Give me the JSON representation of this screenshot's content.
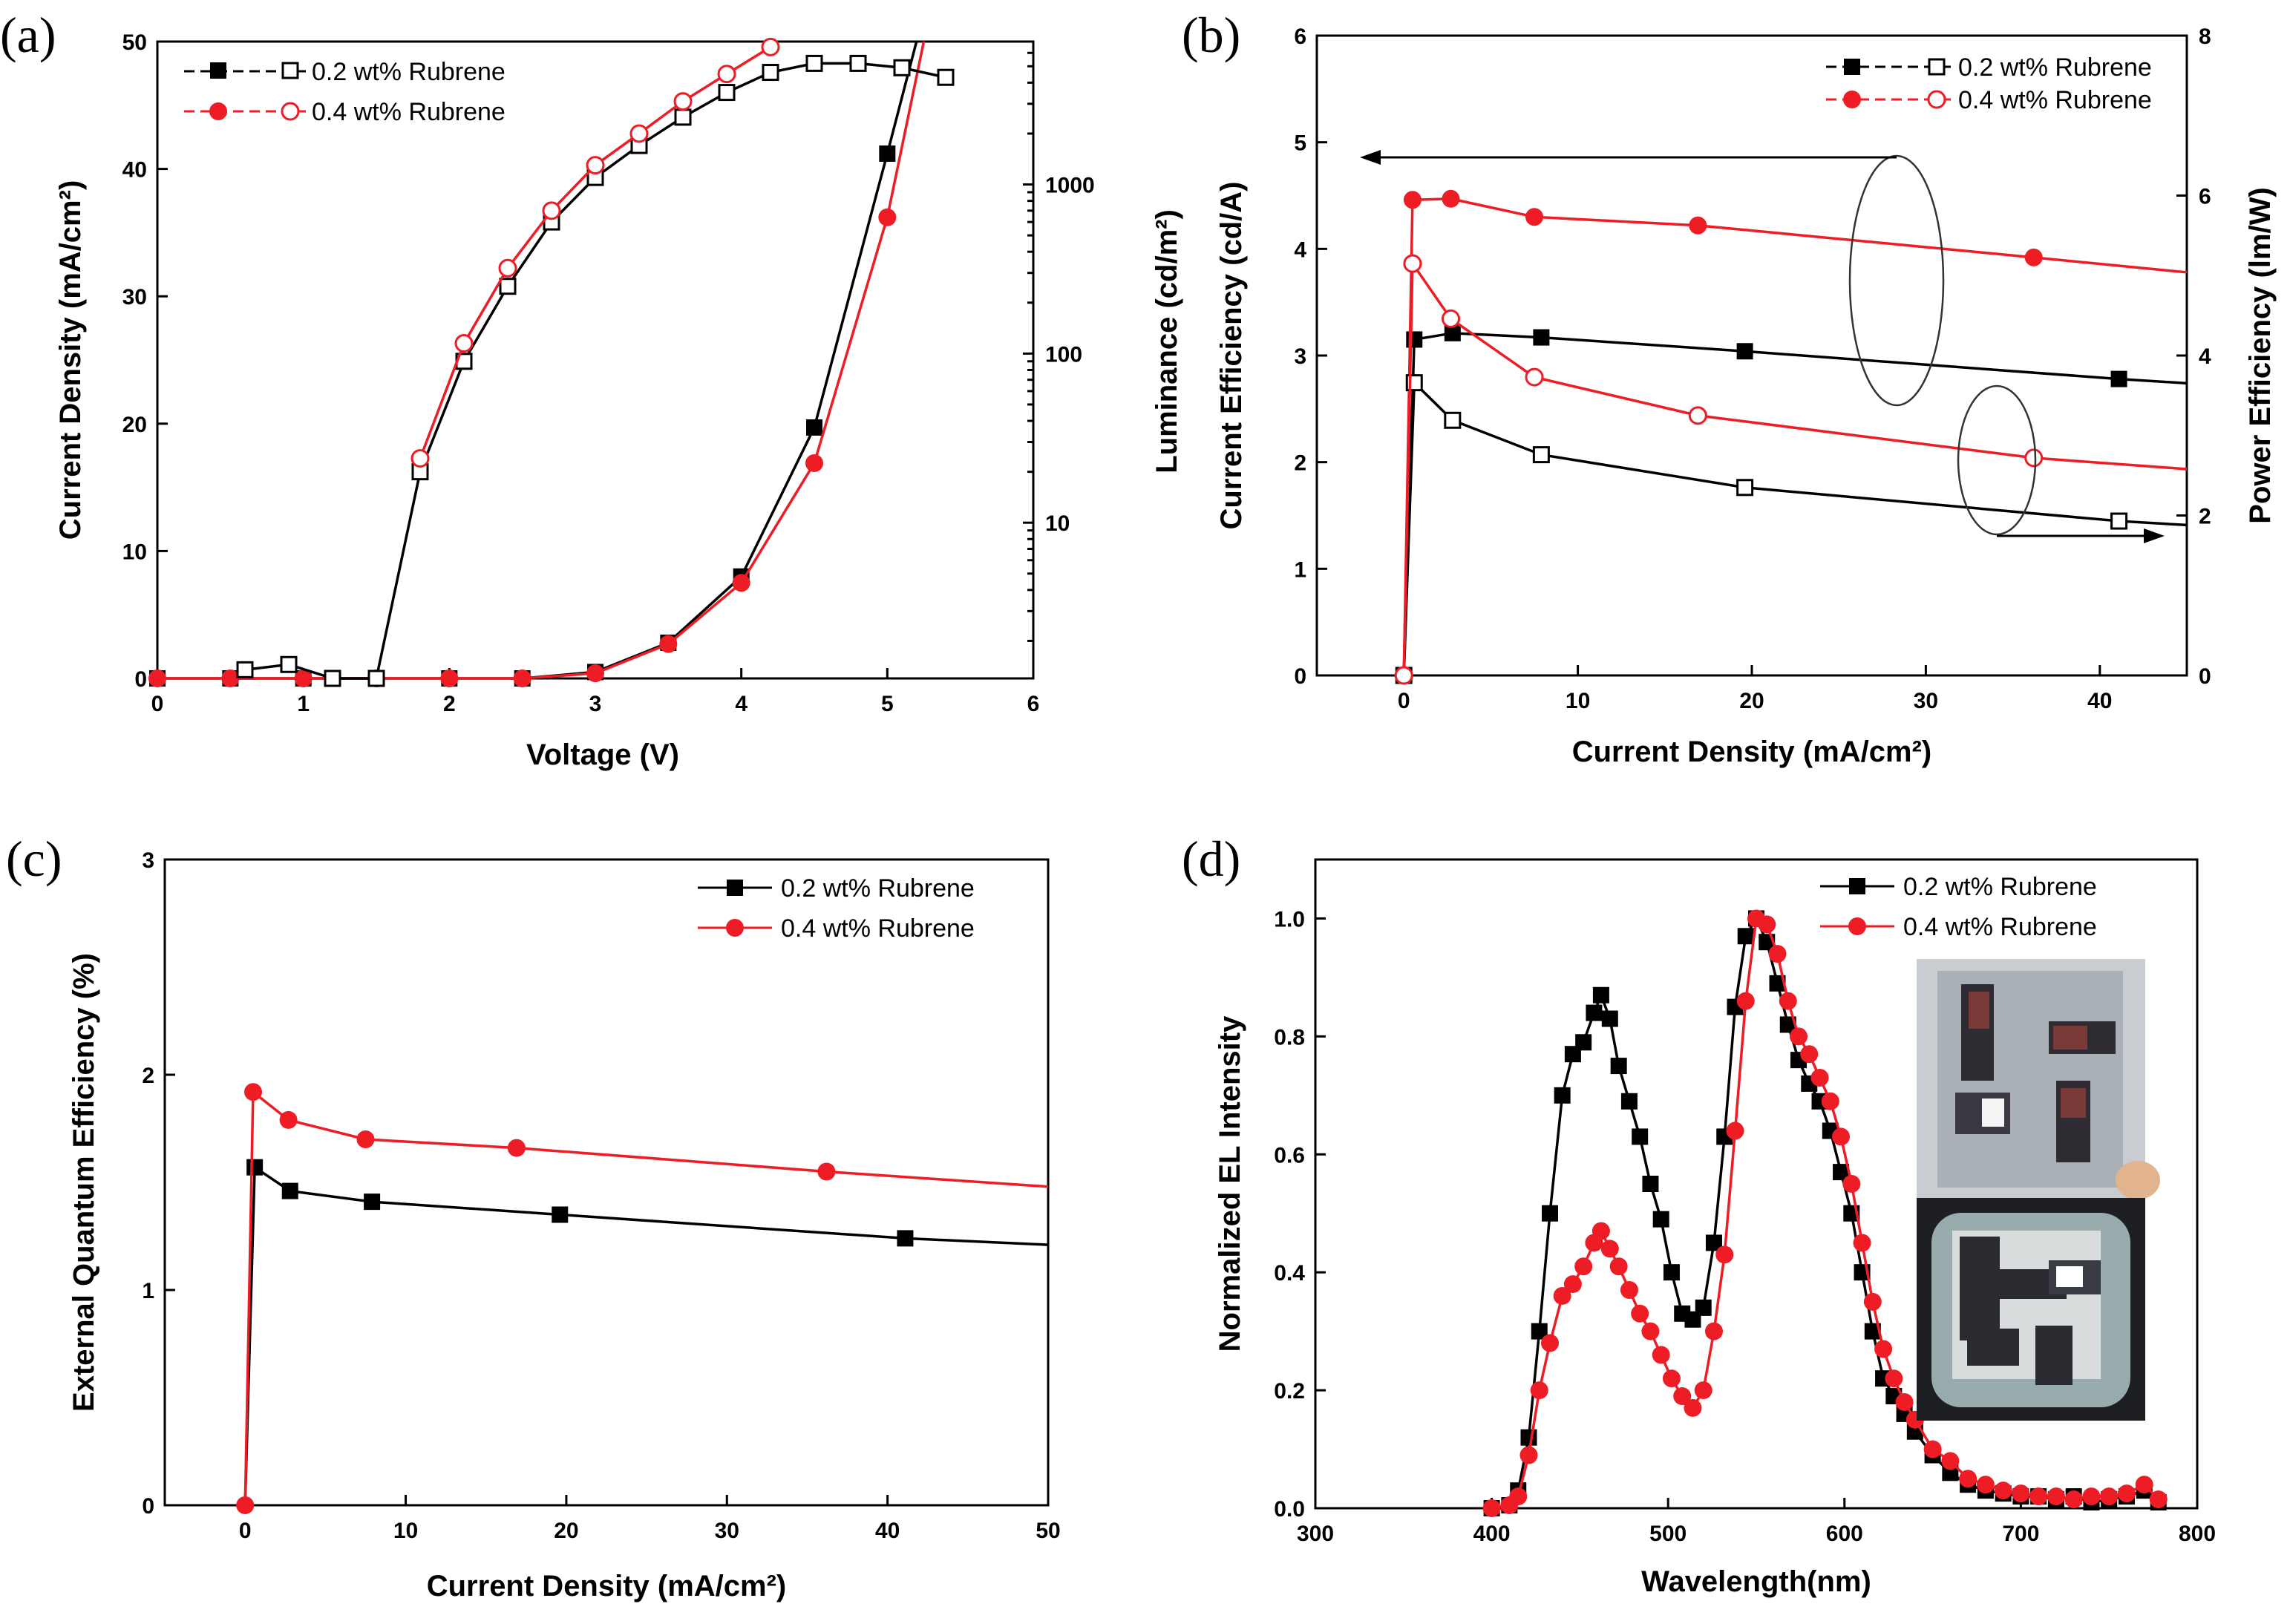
{
  "colors": {
    "black": "#000000",
    "red": "#ee1c24"
  },
  "chart_data": [
    {
      "id": "a",
      "panel_label": "(a)",
      "type": "line",
      "xlabel": "Voltage (V)",
      "ylabel": "Current Density (mA/cm²)",
      "y2label": "Luminance (cd/m²)",
      "xlim": [
        0,
        6
      ],
      "ylim": [
        0,
        50
      ],
      "y2lim": [
        1.2,
        7000
      ],
      "y2scale": "log",
      "xticks": [
        "0",
        "1",
        "2",
        "3",
        "4",
        "5",
        "6"
      ],
      "yticks": [
        "0",
        "10",
        "20",
        "30",
        "40",
        "50"
      ],
      "y2ticks": [
        "10",
        "100",
        "1000"
      ],
      "legend": [
        "0.2 wt% Rubrene",
        "0.4 wt% Rubrene"
      ],
      "legend_position": "top-left",
      "series": [
        {
          "name": "0.2 wt% Rubrene",
          "axis": "left",
          "color": "black",
          "marker": "filled-square",
          "x": [
            0,
            0.5,
            1,
            1.5,
            2,
            2.5,
            3,
            3.5,
            4,
            4.5,
            5,
            5.2
          ],
          "y": [
            0,
            0,
            0,
            0,
            0,
            0,
            0.5,
            2.8,
            8,
            19.7,
            41.2,
            52
          ]
        },
        {
          "name": "0.4 wt% Rubrene",
          "axis": "left",
          "color": "red",
          "marker": "filled-circle",
          "x": [
            0,
            0.5,
            1,
            1.5,
            2,
            2.5,
            3,
            3.5,
            4,
            4.5,
            5,
            5.25
          ],
          "y": [
            0,
            0,
            0,
            0,
            0,
            0,
            0.4,
            2.7,
            7.5,
            16.9,
            36.2,
            52
          ]
        },
        {
          "name": "0.2 wt% Rubrene",
          "axis": "right",
          "color": "black",
          "marker": "open-square",
          "x": [
            0.6,
            0.9,
            1.2,
            1.5,
            1.8,
            2.1,
            2.4,
            2.7,
            3.0,
            3.3,
            3.6,
            3.9,
            4.2,
            4.5,
            4.8,
            5.1,
            5.4
          ],
          "y": [
            1.35,
            1.45,
            1.2,
            1.2,
            20,
            90,
            250,
            600,
            1100,
            1700,
            2500,
            3500,
            4600,
            5200,
            5200,
            4900,
            4300
          ]
        },
        {
          "name": "0.4 wt% Rubrene",
          "axis": "right",
          "color": "red",
          "marker": "open-circle",
          "x": [
            1.8,
            2.1,
            2.4,
            2.7,
            3.0,
            3.3,
            3.6,
            3.9,
            4.2
          ],
          "y": [
            24,
            115,
            320,
            700,
            1300,
            2000,
            3100,
            4500,
            6500
          ]
        }
      ]
    },
    {
      "id": "b",
      "panel_label": "(b)",
      "type": "line",
      "xlabel": "Current Density (mA/cm²)",
      "ylabel": "Current Efficiency (cd/A)",
      "y2label": "Power Efficiency (lm/W)",
      "xlim": [
        -5,
        45
      ],
      "ylim": [
        0,
        6
      ],
      "y2lim": [
        0,
        8
      ],
      "xticks": [
        "0",
        "10",
        "20",
        "30",
        "40"
      ],
      "yticks": [
        "0",
        "1",
        "2",
        "3",
        "4",
        "5",
        "6"
      ],
      "y2ticks": [
        "0",
        "2",
        "4",
        "6",
        "8"
      ],
      "legend": [
        "0.2 wt% Rubrene",
        "0.4 wt% Rubrene"
      ],
      "legend_position": "top-right",
      "series": [
        {
          "name": "0.2 wt% Rubrene",
          "axis": "left",
          "color": "black",
          "marker": "filled-square",
          "x": [
            0,
            0.6,
            2.8,
            7.9,
            19.6,
            41.1,
            45
          ],
          "y": [
            0,
            3.15,
            3.21,
            3.17,
            3.04,
            2.78,
            2.74
          ],
          "marker_idx": [
            1,
            2,
            3,
            4,
            5
          ]
        },
        {
          "name": "0.4 wt% Rubrene",
          "axis": "left",
          "color": "red",
          "marker": "filled-circle",
          "x": [
            0,
            0.5,
            2.7,
            7.5,
            16.9,
            36.2,
            45
          ],
          "y": [
            0,
            4.46,
            4.47,
            4.3,
            4.22,
            3.92,
            3.78
          ],
          "marker_idx": [
            1,
            2,
            3,
            4,
            5
          ]
        },
        {
          "name": "0.2 wt% Rubrene",
          "axis": "right",
          "color": "black",
          "marker": "open-square",
          "x": [
            0,
            0.6,
            2.8,
            7.9,
            19.6,
            41.1,
            45
          ],
          "y": [
            0,
            3.66,
            3.19,
            2.76,
            2.35,
            1.93,
            1.88
          ],
          "marker_idx": [
            0,
            1,
            2,
            3,
            4,
            5
          ]
        },
        {
          "name": "0.4 wt% Rubrene",
          "axis": "right",
          "color": "red",
          "marker": "open-circle",
          "x": [
            0,
            0.5,
            2.7,
            7.5,
            16.9,
            36.2,
            45
          ],
          "y": [
            0,
            5.15,
            4.46,
            3.73,
            3.25,
            2.72,
            2.58
          ],
          "marker_idx": [
            0,
            1,
            2,
            3,
            4,
            5
          ]
        }
      ]
    },
    {
      "id": "c",
      "panel_label": "(c)",
      "type": "line",
      "xlabel": "Current Density (mA/cm²)",
      "ylabel": "External Quantum Efficiency (%)",
      "xlim": [
        -5,
        50
      ],
      "ylim": [
        0,
        3
      ],
      "xticks": [
        "0",
        "10",
        "20",
        "30",
        "40",
        "50"
      ],
      "yticks": [
        "0",
        "1",
        "2",
        "3"
      ],
      "legend": [
        "0.2 wt% Rubrene",
        "0.4 wt% Rubrene"
      ],
      "legend_position": "top-right",
      "series": [
        {
          "name": "0.2 wt% Rubrene",
          "color": "black",
          "marker": "filled-square",
          "x": [
            0,
            0.6,
            2.8,
            7.9,
            19.6,
            41.1,
            50
          ],
          "y": [
            0,
            1.57,
            1.46,
            1.41,
            1.35,
            1.24,
            1.21
          ],
          "marker_idx": [
            1,
            2,
            3,
            4,
            5
          ]
        },
        {
          "name": "0.4 wt% Rubrene",
          "color": "red",
          "marker": "filled-circle",
          "x": [
            0,
            0.5,
            2.7,
            7.5,
            16.9,
            36.2,
            50
          ],
          "y": [
            0,
            1.92,
            1.79,
            1.7,
            1.66,
            1.55,
            1.48
          ],
          "marker_idx": [
            0,
            1,
            2,
            3,
            4,
            5
          ]
        }
      ]
    },
    {
      "id": "d",
      "panel_label": "(d)",
      "type": "line",
      "xlabel": "Wavelength(nm)",
      "ylabel": "Normalized EL Intensity",
      "xlim": [
        300,
        800
      ],
      "ylim": [
        0,
        1.1
      ],
      "xticks": [
        "300",
        "400",
        "500",
        "600",
        "700",
        "800"
      ],
      "yticks": [
        "0.0",
        "0.2",
        "0.4",
        "0.6",
        "0.8",
        "1.0"
      ],
      "legend": [
        "0.2 wt% Rubrene",
        "0.4 wt% Rubrene"
      ],
      "legend_position": "top-right",
      "inset": "device photographs (unlit and emitting)",
      "series": [
        {
          "name": "0.2 wt% Rubrene",
          "color": "black",
          "marker": "filled-square",
          "x": [
            400,
            410,
            415,
            421,
            427,
            433,
            440,
            446,
            452,
            458,
            462,
            467,
            472,
            478,
            484,
            490,
            496,
            502,
            508,
            514,
            520,
            526,
            532,
            538,
            544,
            550,
            556,
            562,
            568,
            574,
            580,
            586,
            592,
            598,
            604,
            610,
            616,
            622,
            628,
            634,
            640,
            650,
            660,
            670,
            680,
            690,
            700,
            710,
            720,
            730,
            740,
            750,
            760,
            770,
            778
          ],
          "y": [
            0.0,
            0.005,
            0.03,
            0.12,
            0.3,
            0.5,
            0.7,
            0.77,
            0.79,
            0.84,
            0.87,
            0.83,
            0.75,
            0.69,
            0.63,
            0.55,
            0.49,
            0.4,
            0.33,
            0.32,
            0.34,
            0.45,
            0.63,
            0.85,
            0.97,
            1.0,
            0.96,
            0.89,
            0.82,
            0.76,
            0.72,
            0.69,
            0.64,
            0.57,
            0.5,
            0.4,
            0.3,
            0.22,
            0.19,
            0.16,
            0.13,
            0.09,
            0.06,
            0.04,
            0.03,
            0.025,
            0.02,
            0.02,
            0.015,
            0.02,
            0.01,
            0.015,
            0.02,
            0.03,
            0.01
          ]
        },
        {
          "name": "0.4 wt% Rubrene",
          "color": "red",
          "marker": "filled-circle",
          "x": [
            400,
            410,
            415,
            421,
            427,
            433,
            440,
            446,
            452,
            458,
            462,
            467,
            472,
            478,
            484,
            490,
            496,
            502,
            508,
            514,
            520,
            526,
            532,
            538,
            544,
            550,
            556,
            562,
            568,
            574,
            580,
            586,
            592,
            598,
            604,
            610,
            616,
            622,
            628,
            634,
            640,
            650,
            660,
            670,
            680,
            690,
            700,
            710,
            720,
            730,
            740,
            750,
            760,
            770,
            778
          ],
          "y": [
            0.0,
            0.005,
            0.02,
            0.09,
            0.2,
            0.28,
            0.36,
            0.38,
            0.41,
            0.45,
            0.47,
            0.44,
            0.41,
            0.37,
            0.33,
            0.3,
            0.26,
            0.22,
            0.19,
            0.17,
            0.2,
            0.3,
            0.43,
            0.64,
            0.86,
            1.0,
            0.99,
            0.94,
            0.86,
            0.8,
            0.77,
            0.73,
            0.69,
            0.63,
            0.55,
            0.45,
            0.35,
            0.27,
            0.22,
            0.18,
            0.15,
            0.1,
            0.08,
            0.05,
            0.04,
            0.03,
            0.025,
            0.02,
            0.02,
            0.015,
            0.02,
            0.02,
            0.025,
            0.04,
            0.015
          ]
        }
      ]
    }
  ]
}
